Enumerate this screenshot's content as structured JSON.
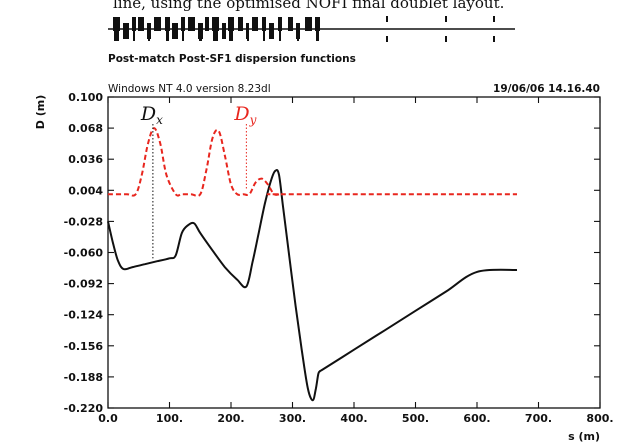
{
  "caption_fragment": "line, using the optimised NOFI final doublet layout.",
  "lattice": {
    "label": "Post-match Post-SF1 dispersion functions"
  },
  "header": {
    "left": "Windows NT 4.0 version 8.23dl",
    "right": "19/06/06  14.16.40"
  },
  "chart_data": {
    "type": "line",
    "title": "",
    "xlabel": "s (m)",
    "ylabel": "D (m)",
    "xlim": [
      0,
      800
    ],
    "ylim": [
      -0.22,
      0.1
    ],
    "xticks": [
      "0.0",
      "100.",
      "200.",
      "300.",
      "400.",
      "500.",
      "600.",
      "700.",
      "800."
    ],
    "yticks": [
      "0.100",
      "0.068",
      "0.036",
      "0.004",
      "-0.028",
      "-0.060",
      "-0.092",
      "-0.124",
      "-0.156",
      "-0.188",
      "-0.220"
    ],
    "grid": false,
    "series": [
      {
        "name": "Dx",
        "color": "#111111",
        "style": "solid",
        "x": [
          0,
          8,
          16,
          25,
          40,
          60,
          80,
          100,
          110,
          120,
          130,
          140,
          150,
          170,
          190,
          210,
          225,
          235,
          245,
          255,
          265,
          272,
          278,
          285,
          295,
          305,
          315,
          325,
          333,
          338,
          342,
          345,
          350,
          400,
          450,
          500,
          550,
          600,
          665
        ],
        "y": [
          -0.028,
          -0.05,
          -0.068,
          -0.077,
          -0.075,
          -0.072,
          -0.069,
          -0.066,
          -0.063,
          -0.04,
          -0.032,
          -0.03,
          -0.04,
          -0.058,
          -0.075,
          -0.088,
          -0.095,
          -0.07,
          -0.04,
          -0.01,
          0.014,
          0.024,
          0.02,
          -0.015,
          -0.065,
          -0.115,
          -0.16,
          -0.2,
          -0.212,
          -0.2,
          -0.185,
          -0.182,
          -0.18,
          -0.16,
          -0.14,
          -0.12,
          -0.1,
          -0.08,
          -0.078
        ]
      },
      {
        "name": "Dy",
        "color": "#e8261e",
        "style": "dashed",
        "x": [
          0,
          30,
          45,
          55,
          65,
          75,
          85,
          95,
          110,
          120,
          135,
          150,
          160,
          170,
          180,
          190,
          200,
          210,
          220,
          230,
          240,
          250,
          260,
          270,
          280,
          290,
          665
        ],
        "y": [
          0.0,
          0.0,
          0.0,
          0.02,
          0.052,
          0.068,
          0.052,
          0.02,
          0.0,
          0.0,
          0.0,
          0.0,
          0.025,
          0.058,
          0.065,
          0.04,
          0.01,
          0.0,
          0.0,
          0.0,
          0.012,
          0.016,
          0.01,
          0.0,
          0.0,
          0.0,
          0.0
        ]
      }
    ],
    "annotations": [
      {
        "text": "D",
        "sub": "x",
        "color": "#111111",
        "x": 73
      },
      {
        "text": "D",
        "sub": "y",
        "color": "#e8261e",
        "x": 225
      }
    ]
  }
}
